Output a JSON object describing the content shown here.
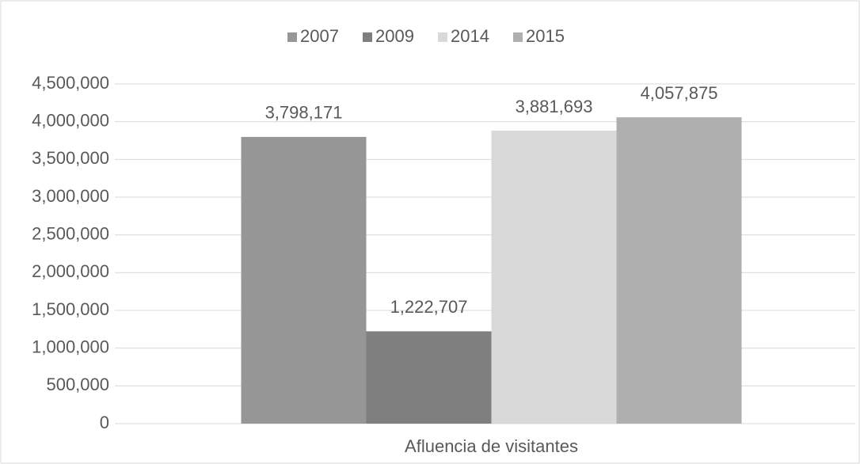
{
  "chart_data": {
    "type": "bar",
    "categories": [
      "Afluencia de visitantes"
    ],
    "series": [
      {
        "name": "2007",
        "color": "#969696",
        "values": [
          3798171
        ],
        "value_labels": [
          "3,798,171"
        ]
      },
      {
        "name": "2009",
        "color": "#7f7f7f",
        "values": [
          1222707
        ],
        "value_labels": [
          "1,222,707"
        ]
      },
      {
        "name": "2014",
        "color": "#d9d9d9",
        "values": [
          3881693
        ],
        "value_labels": [
          "3,881,693"
        ]
      },
      {
        "name": "2015",
        "color": "#afafaf",
        "values": [
          4057875
        ],
        "value_labels": [
          "4,057,875"
        ]
      }
    ],
    "ylim": [
      0,
      4500000
    ],
    "yticks": [
      0,
      {
        "value": 500000,
        "label": "500,000"
      },
      {
        "value": 1000000,
        "label": "1,000,000"
      },
      {
        "value": 1500000,
        "label": "1,500,000"
      },
      {
        "value": 2000000,
        "label": "2,000,000"
      },
      {
        "value": 2500000,
        "label": "2,500,000"
      },
      {
        "value": 3000000,
        "label": "3,000,000"
      },
      {
        "value": 3500000,
        "label": "3,500,000"
      },
      {
        "value": 4000000,
        "label": "4,000,000"
      },
      {
        "value": 4500000,
        "label": "4,500,000"
      }
    ],
    "grid": true,
    "legend": "top"
  }
}
